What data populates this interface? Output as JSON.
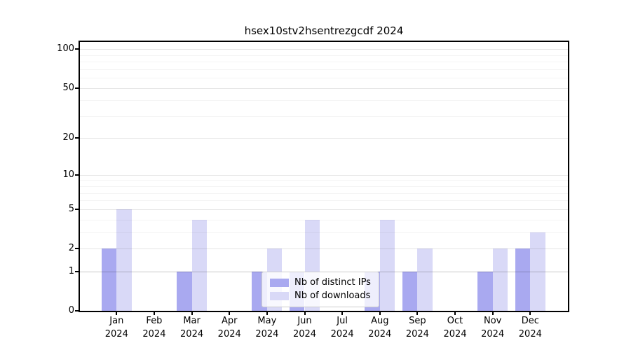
{
  "title": "hsex10stv2hsentrezgcdf 2024",
  "chart_data": {
    "type": "bar",
    "title": "hsex10stv2hsentrezgcdf 2024",
    "xlabel": "",
    "ylabel": "",
    "y_scale": "log1p",
    "ylim": [
      0,
      115
    ],
    "grid": true,
    "legend_position": "lower center",
    "year": "2024",
    "categories": [
      "Jan",
      "Feb",
      "Mar",
      "Apr",
      "May",
      "Jun",
      "Jul",
      "Aug",
      "Sep",
      "Oct",
      "Nov",
      "Dec"
    ],
    "x_tick_labels": [
      "Jan 2024",
      "Feb 2024",
      "Mar 2024",
      "Apr 2024",
      "May 2024",
      "Jun 2024",
      "Jul 2024",
      "Aug 2024",
      "Sep 2024",
      "Oct 2024",
      "Nov 2024",
      "Dec 2024"
    ],
    "series": [
      {
        "name": "Nb of distinct IPs",
        "color": "#a9a9f0",
        "values": [
          2,
          0,
          1,
          0,
          1,
          1,
          0,
          1,
          1,
          0,
          1,
          2
        ]
      },
      {
        "name": "Nb of downloads",
        "color": "#d9d9f7",
        "values": [
          5,
          0,
          4,
          0,
          2,
          4,
          0,
          4,
          2,
          0,
          2,
          3
        ]
      }
    ],
    "y_major_ticks": [
      0,
      1,
      2,
      5,
      10,
      20,
      50,
      100
    ],
    "y_minor_ticks": [
      3,
      4,
      6,
      7,
      8,
      9,
      30,
      40,
      60,
      70,
      80,
      90
    ]
  },
  "colors": {
    "axis": "#000000",
    "grid_major": "rgba(0,0,0,0.10)",
    "grid_minor": "rgba(0,0,0,0.045)",
    "background": "#ffffff"
  }
}
